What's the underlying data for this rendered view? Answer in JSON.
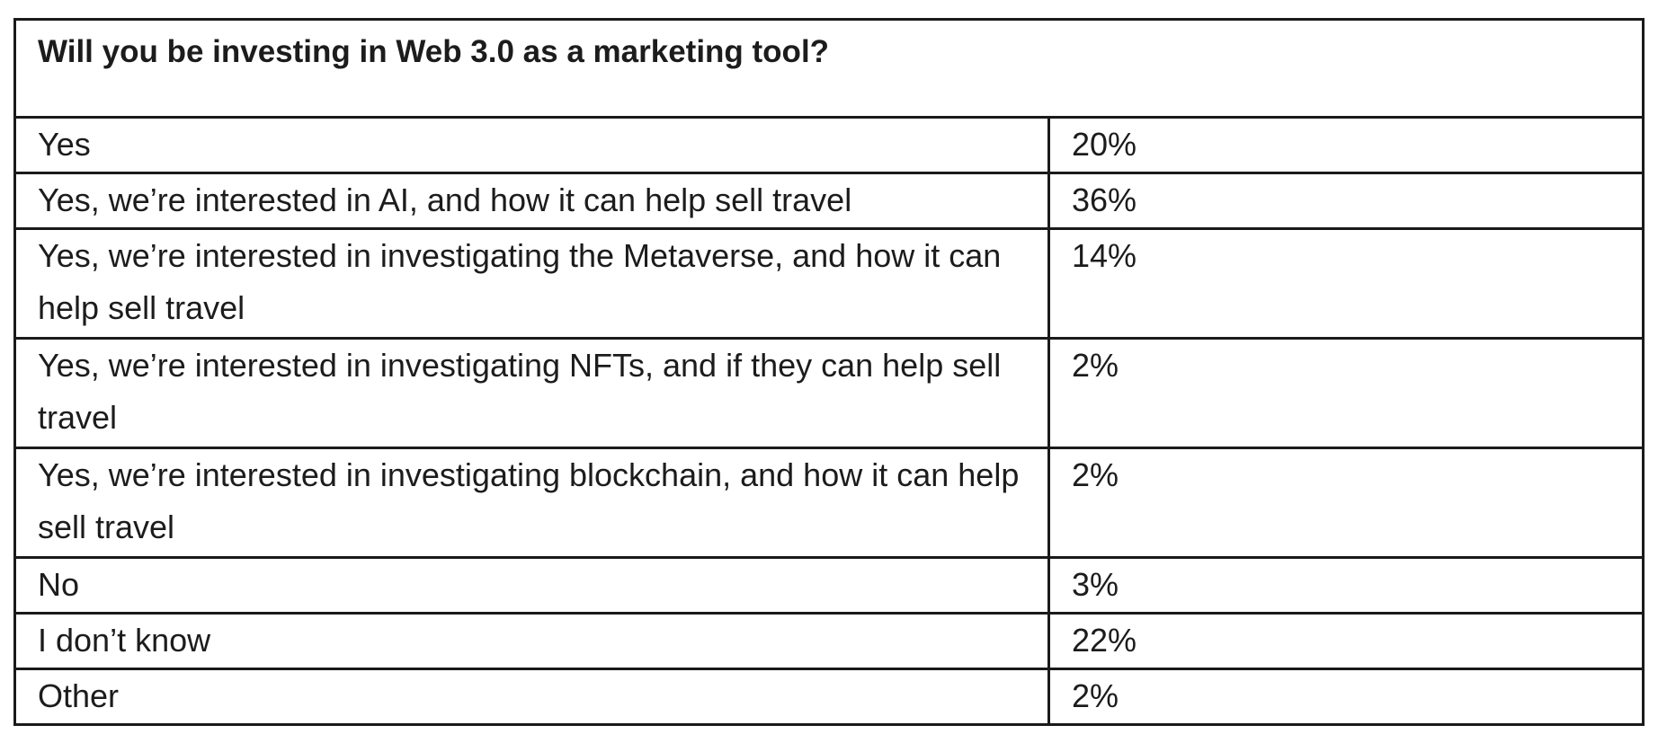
{
  "table": {
    "question": "Will you be investing in Web 3.0 as a marketing tool?",
    "rows": [
      {
        "answer": "Yes",
        "percent": "20%"
      },
      {
        "answer": "Yes, we’re interested in AI, and how it can help sell travel",
        "percent": "36%"
      },
      {
        "answer": "Yes, we’re interested in investigating the Metaverse, and how it can help sell travel",
        "percent": "14%"
      },
      {
        "answer": "Yes, we’re interested in investigating NFTs, and if they can help sell travel",
        "percent": "2%"
      },
      {
        "answer": "Yes, we’re interested in investigating blockchain, and how it can help sell travel",
        "percent": "2%"
      },
      {
        "answer": "No",
        "percent": "3%"
      },
      {
        "answer": "I don’t know",
        "percent": "22%"
      },
      {
        "answer": "Other",
        "percent": "2%"
      }
    ]
  }
}
